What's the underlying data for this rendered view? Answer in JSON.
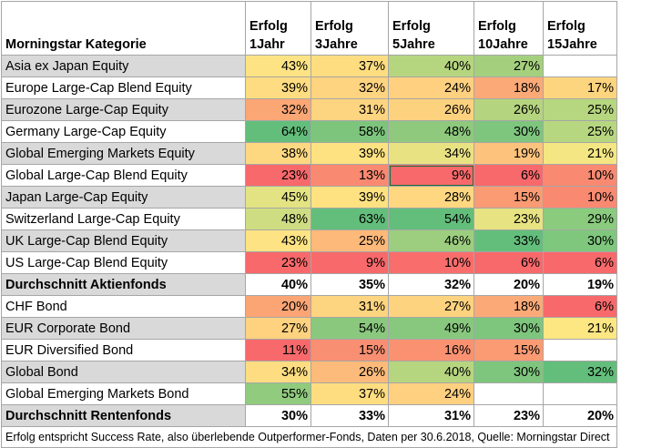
{
  "headers": [
    "Morningstar Kategorie",
    "Erfolg\n1Jahr",
    "Erfolg\n3Jahre",
    "Erfolg\n5Jahre",
    "Erfolg\n10Jahre",
    "Erfolg\n15Jahre"
  ],
  "rows": [
    {
      "label": "Asia ex Japan Equity",
      "grey": true,
      "bold": false,
      "cells": [
        {
          "v": "43%",
          "c": "#fde383"
        },
        {
          "v": "37%",
          "c": "#fedd81"
        },
        {
          "v": "40%",
          "c": "#b6d57f"
        },
        {
          "v": "27%",
          "c": "#a4d07e"
        },
        {
          "v": "",
          "c": "#ffffff"
        }
      ]
    },
    {
      "label": "Europe Large-Cap Blend Equity",
      "grey": false,
      "bold": false,
      "cells": [
        {
          "v": "39%",
          "c": "#fedc81"
        },
        {
          "v": "32%",
          "c": "#fed480"
        },
        {
          "v": "24%",
          "c": "#fed07f"
        },
        {
          "v": "18%",
          "c": "#fbaa77"
        },
        {
          "v": "17%",
          "c": "#fed57f"
        }
      ]
    },
    {
      "label": "Eurozone Large-Cap Equity",
      "grey": true,
      "bold": false,
      "cells": [
        {
          "v": "32%",
          "c": "#fba675"
        },
        {
          "v": "31%",
          "c": "#fdd47f"
        },
        {
          "v": "26%",
          "c": "#fdd27f"
        },
        {
          "v": "26%",
          "c": "#b5d47f"
        },
        {
          "v": "25%",
          "c": "#b7d680"
        }
      ]
    },
    {
      "label": "Germany Large-Cap Equity",
      "grey": false,
      "bold": false,
      "cells": [
        {
          "v": "64%",
          "c": "#63be7b"
        },
        {
          "v": "58%",
          "c": "#7dc57d"
        },
        {
          "v": "48%",
          "c": "#8ec97e"
        },
        {
          "v": "30%",
          "c": "#7ec57d"
        },
        {
          "v": "25%",
          "c": "#b7d680"
        }
      ]
    },
    {
      "label": "Global Emerging Markets Equity",
      "grey": true,
      "bold": false,
      "cells": [
        {
          "v": "38%",
          "c": "#fed881"
        },
        {
          "v": "39%",
          "c": "#fee282"
        },
        {
          "v": "34%",
          "c": "#e9e283"
        },
        {
          "v": "19%",
          "c": "#fdc37d"
        },
        {
          "v": "21%",
          "c": "#f4e783"
        }
      ]
    },
    {
      "label": "Global Large-Cap Blend Equity",
      "grey": false,
      "bold": false,
      "cells": [
        {
          "v": "23%",
          "c": "#f8696b"
        },
        {
          "v": "13%",
          "c": "#f98971"
        },
        {
          "v": "9%",
          "c": "#f8696b",
          "sel": true
        },
        {
          "v": "6%",
          "c": "#f8696b"
        },
        {
          "v": "10%",
          "c": "#f98971"
        }
      ]
    },
    {
      "label": "Japan Large-Cap Equity",
      "grey": true,
      "bold": false,
      "cells": [
        {
          "v": "45%",
          "c": "#e3e383"
        },
        {
          "v": "39%",
          "c": "#fee282"
        },
        {
          "v": "28%",
          "c": "#fed780"
        },
        {
          "v": "15%",
          "c": "#fa9b73"
        },
        {
          "v": "10%",
          "c": "#f98971"
        }
      ]
    },
    {
      "label": "Switzerland Large-Cap Equity",
      "grey": false,
      "bold": false,
      "cells": [
        {
          "v": "48%",
          "c": "#cfdd82"
        },
        {
          "v": "63%",
          "c": "#63be7b"
        },
        {
          "v": "54%",
          "c": "#63be7b"
        },
        {
          "v": "23%",
          "c": "#e7e382"
        },
        {
          "v": "29%",
          "c": "#8acb7e"
        }
      ]
    },
    {
      "label": "UK Large-Cap Blend Equity",
      "grey": true,
      "bold": false,
      "cells": [
        {
          "v": "43%",
          "c": "#fde383"
        },
        {
          "v": "25%",
          "c": "#fcb97a"
        },
        {
          "v": "46%",
          "c": "#9dce7f"
        },
        {
          "v": "33%",
          "c": "#63be7b"
        },
        {
          "v": "30%",
          "c": "#7ec77d"
        }
      ]
    },
    {
      "label": "US Large-Cap Blend Equity",
      "grey": false,
      "bold": false,
      "cells": [
        {
          "v": "23%",
          "c": "#f8696b"
        },
        {
          "v": "9%",
          "c": "#f8696b"
        },
        {
          "v": "10%",
          "c": "#f96e6c"
        },
        {
          "v": "6%",
          "c": "#f8696b"
        },
        {
          "v": "6%",
          "c": "#f8696b"
        }
      ]
    },
    {
      "label": "Durchschnitt Aktienfonds",
      "grey": true,
      "bold": true,
      "cells": [
        {
          "v": "40%",
          "c": "#ffffff"
        },
        {
          "v": "35%",
          "c": "#ffffff"
        },
        {
          "v": "32%",
          "c": "#ffffff"
        },
        {
          "v": "20%",
          "c": "#ffffff"
        },
        {
          "v": "19%",
          "c": "#ffffff"
        }
      ]
    },
    {
      "label": "CHF Bond",
      "grey": false,
      "bold": false,
      "cells": [
        {
          "v": "20%",
          "c": "#fba575"
        },
        {
          "v": "31%",
          "c": "#fdd47f"
        },
        {
          "v": "27%",
          "c": "#fdd37f"
        },
        {
          "v": "18%",
          "c": "#fbaa77"
        },
        {
          "v": "6%",
          "c": "#f8696b"
        }
      ]
    },
    {
      "label": "EUR Corporate Bond",
      "grey": true,
      "bold": false,
      "cells": [
        {
          "v": "27%",
          "c": "#fed27f"
        },
        {
          "v": "54%",
          "c": "#8ac87e"
        },
        {
          "v": "49%",
          "c": "#88c87e"
        },
        {
          "v": "30%",
          "c": "#7ec57d"
        },
        {
          "v": "21%",
          "c": "#fde783"
        }
      ]
    },
    {
      "label": "EUR Diversified Bond",
      "grey": false,
      "bold": false,
      "cells": [
        {
          "v": "11%",
          "c": "#f8696b"
        },
        {
          "v": "15%",
          "c": "#f98f72"
        },
        {
          "v": "16%",
          "c": "#fa9272"
        },
        {
          "v": "15%",
          "c": "#fa9b73"
        },
        {
          "v": "",
          "c": "#ffffff"
        }
      ]
    },
    {
      "label": "Global Bond",
      "grey": true,
      "bold": false,
      "cells": [
        {
          "v": "34%",
          "c": "#fedc81"
        },
        {
          "v": "26%",
          "c": "#fcbb7a"
        },
        {
          "v": "40%",
          "c": "#b6d57f"
        },
        {
          "v": "30%",
          "c": "#7ec57d"
        },
        {
          "v": "32%",
          "c": "#63be7b"
        }
      ]
    },
    {
      "label": "Global Emerging Markets Bond",
      "grey": false,
      "bold": false,
      "cells": [
        {
          "v": "55%",
          "c": "#90cb7e"
        },
        {
          "v": "37%",
          "c": "#fedd81"
        },
        {
          "v": "24%",
          "c": "#fed07f"
        },
        {
          "v": "",
          "c": "#ffffff"
        },
        {
          "v": "",
          "c": "#ffffff"
        }
      ]
    },
    {
      "label": "Durchschnitt Rentenfonds",
      "grey": true,
      "bold": true,
      "cells": [
        {
          "v": "30%",
          "c": "#ffffff"
        },
        {
          "v": "33%",
          "c": "#ffffff"
        },
        {
          "v": "31%",
          "c": "#ffffff"
        },
        {
          "v": "23%",
          "c": "#ffffff"
        },
        {
          "v": "20%",
          "c": "#ffffff"
        }
      ]
    }
  ],
  "footer": "Erfolg entspricht Success Rate, also überlebende Outperformer-Fonds, Daten per 30.6.2018, Quelle: Morningstar Direct"
}
